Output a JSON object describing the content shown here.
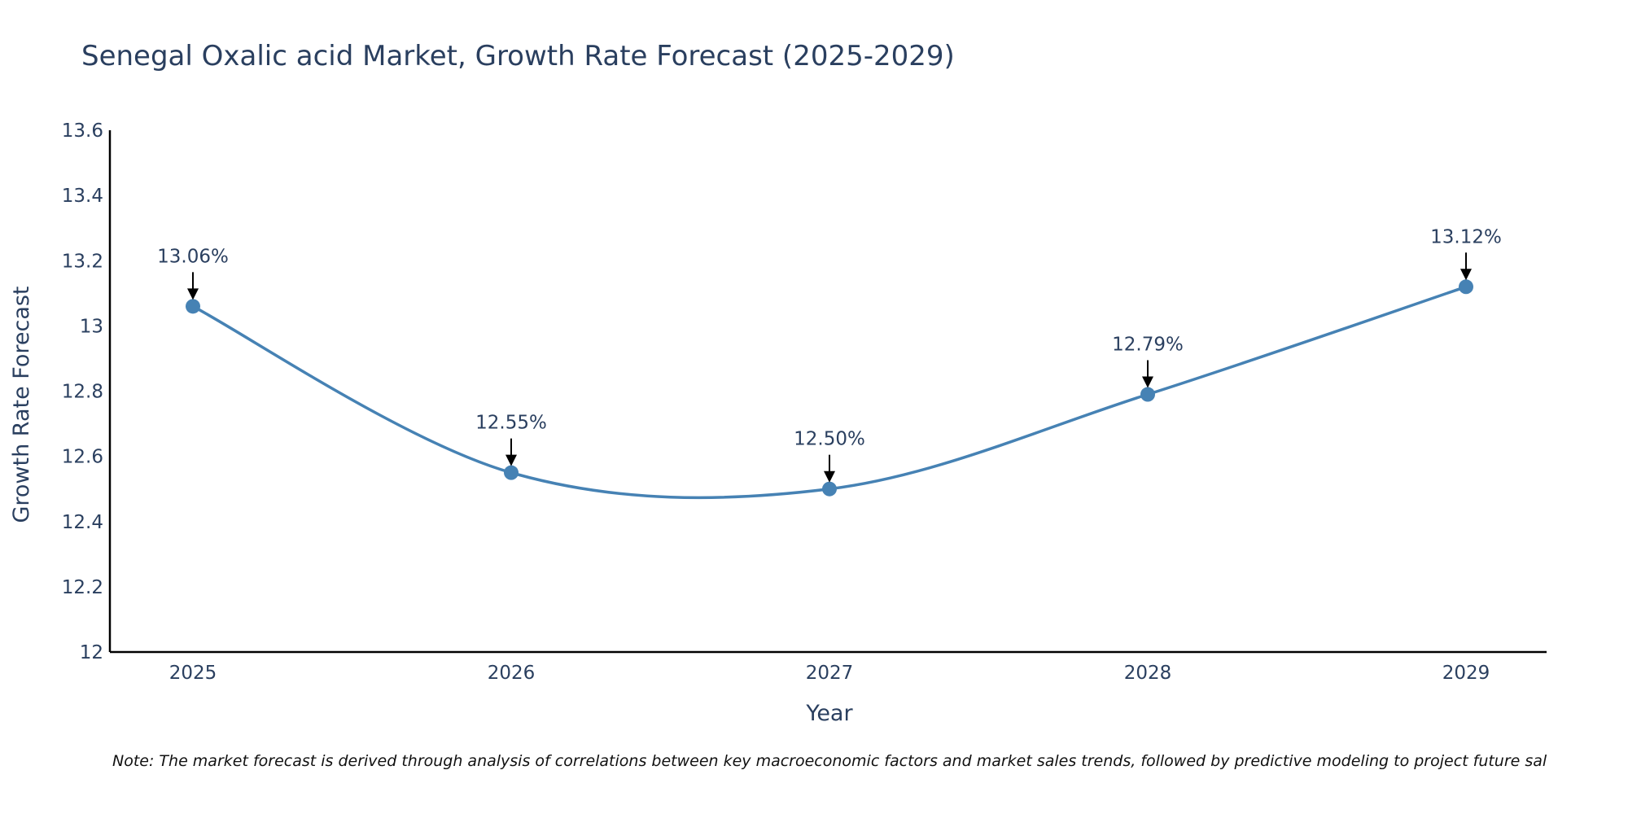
{
  "chart_data": {
    "type": "line",
    "title": "Senegal Oxalic acid Market, Growth Rate Forecast (2025-2029)",
    "xlabel": "Year",
    "ylabel": "Growth Rate Forecast",
    "categories": [
      "2025",
      "2026",
      "2027",
      "2028",
      "2029"
    ],
    "values": [
      13.06,
      12.55,
      12.5,
      12.79,
      13.12
    ],
    "data_labels": [
      "13.06%",
      "12.55%",
      "12.50%",
      "12.79%",
      "13.12%"
    ],
    "ylim": [
      12,
      13.6
    ],
    "y_ticks": [
      12,
      12.2,
      12.4,
      12.6,
      12.8,
      13,
      13.2,
      13.4,
      13.6
    ],
    "y_tick_labels": [
      "12",
      "12.2",
      "12.4",
      "12.6",
      "12.8",
      "13",
      "13.2",
      "13.4",
      "13.6"
    ],
    "grid": false,
    "line_color": "#4682b4",
    "annotation_arrow_color": "#000000",
    "axis_color": "#000000",
    "note": "Note: The market forecast is derived through analysis of correlations between key macroeconomic factors and market sales trends, followed by predictive modeling to project future sal"
  }
}
